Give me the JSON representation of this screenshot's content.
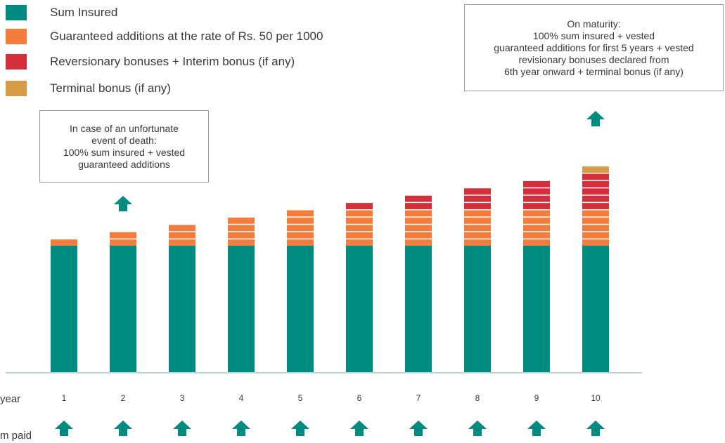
{
  "chart_data": {
    "type": "bar",
    "stacked": true,
    "colors": {
      "sum_insured": "#008b80",
      "guaranteed_additions": "#f47c3c",
      "reversionary_bonus": "#d3303c",
      "terminal_bonus": "#d79a45",
      "axis": "#b9d6dc",
      "arrow": "#008b80"
    },
    "legend": [
      {
        "key": "sum_insured",
        "label": "Sum Insured"
      },
      {
        "key": "guaranteed_additions",
        "label": "Guaranteed additions at the rate of Rs. 50 per 1000"
      },
      {
        "key": "reversionary_bonus",
        "label": "Reversionary bonuses + Interim bonus (if any)"
      },
      {
        "key": "terminal_bonus",
        "label": "Terminal bonus (if any)"
      }
    ],
    "categories": [
      "1",
      "2",
      "3",
      "4",
      "5",
      "6",
      "7",
      "8",
      "9",
      "10"
    ],
    "series": [
      {
        "name": "Sum Insured",
        "key": "sum_insured",
        "values": [
          1,
          1,
          1,
          1,
          1,
          1,
          1,
          1,
          1,
          1
        ]
      },
      {
        "name": "Guaranteed additions at the rate of Rs. 50 per 1000",
        "key": "guaranteed_additions",
        "values": [
          1,
          2,
          3,
          4,
          5,
          5,
          5,
          5,
          5,
          5
        ]
      },
      {
        "name": "Reversionary bonuses + Interim bonus (if any)",
        "key": "reversionary_bonus",
        "values": [
          0,
          0,
          0,
          0,
          0,
          1,
          2,
          3,
          4,
          5
        ]
      },
      {
        "name": "Terminal bonus (if any)",
        "key": "terminal_bonus",
        "values": [
          0,
          0,
          0,
          0,
          0,
          0,
          0,
          0,
          0,
          1
        ]
      }
    ],
    "premium_paid_years": [
      "1",
      "2",
      "3",
      "4",
      "5",
      "6",
      "7",
      "8",
      "9",
      "10"
    ],
    "row_labels": {
      "year": "year",
      "premium": "m paid"
    },
    "annotations": {
      "death": [
        "In case of an unfortunate",
        "event of death:",
        "100% sum insured + vested",
        "guaranteed additions"
      ],
      "maturity": [
        "On maturity:",
        "100% sum insured + vested",
        "guaranteed additions for first 5 years + vested",
        "revisionary bonuses declared from",
        "6th year onward + terminal bonus (if any)"
      ]
    }
  }
}
